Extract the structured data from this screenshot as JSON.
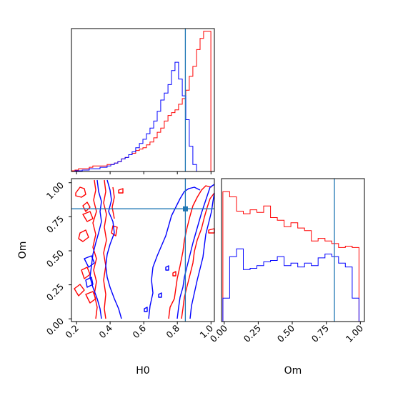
{
  "colors": {
    "series_a": "#ff0000",
    "series_b": "#0000ff",
    "truth": "#1f77b4"
  },
  "chart_data": {
    "type": "corner",
    "parameters": [
      "H0",
      "Om"
    ],
    "truth": {
      "H0": 0.84,
      "Om": 0.81
    },
    "panels": [
      {
        "id": "hist_H0",
        "type": "histogram",
        "x": "H0",
        "xlim": [
          0.17,
          1.02
        ],
        "ylim": [
          0,
          1.02
        ],
        "bins": [
          0.17,
          0.191,
          0.212,
          0.234,
          0.255,
          0.276,
          0.297,
          0.319,
          0.34,
          0.361,
          0.382,
          0.404,
          0.425,
          0.446,
          0.467,
          0.489,
          0.51,
          0.531,
          0.552,
          0.574,
          0.595,
          0.616,
          0.637,
          0.659,
          0.68,
          0.701,
          0.722,
          0.744,
          0.765,
          0.786,
          0.807,
          0.829,
          0.85,
          0.871,
          0.892,
          0.914,
          0.935,
          0.956,
          0.977,
          0.999,
          1.02
        ],
        "series": [
          {
            "color": "red",
            "values": [
              0.005,
              0.01,
              0.02,
              0.02,
              0.02,
              0.03,
              0.04,
              0.04,
              0.04,
              0.04,
              0.05,
              0.05,
              0.06,
              0.07,
              0.09,
              0.1,
              0.12,
              0.13,
              0.15,
              0.16,
              0.17,
              0.19,
              0.21,
              0.24,
              0.28,
              0.31,
              0.36,
              0.4,
              0.42,
              0.44,
              0.48,
              0.52,
              0.58,
              0.68,
              0.75,
              0.87,
              0.95,
              1.0,
              1.0,
              0.0
            ]
          },
          {
            "color": "blue",
            "values": [
              0.0,
              0.005,
              0.005,
              0.01,
              0.01,
              0.02,
              0.02,
              0.02,
              0.03,
              0.03,
              0.04,
              0.05,
              0.06,
              0.07,
              0.09,
              0.1,
              0.12,
              0.14,
              0.17,
              0.2,
              0.23,
              0.27,
              0.31,
              0.36,
              0.43,
              0.51,
              0.56,
              0.62,
              0.72,
              0.78,
              0.66,
              0.54,
              0.37,
              0.18,
              0.05,
              0.0,
              0.0,
              0.0,
              0.0,
              0.0
            ]
          }
        ]
      },
      {
        "id": "contour_H0_Om",
        "type": "contour",
        "x": "H0",
        "y": "Om",
        "xlim": [
          0.17,
          1.02
        ],
        "ylim": [
          -0.02,
          1.03
        ],
        "xticks": [
          "0.2",
          "0.4",
          "0.6",
          "0.8",
          "1.0"
        ],
        "yticks": [
          "0.00",
          "0.25",
          "0.50",
          "0.75",
          "1.00"
        ],
        "xlabel": "H0",
        "ylabel": "Om",
        "series": [
          {
            "color": "red",
            "levels": 2
          },
          {
            "color": "blue",
            "levels": 2
          }
        ]
      },
      {
        "id": "hist_Om",
        "type": "histogram",
        "x": "Om",
        "xlim": [
          -0.02,
          1.03
        ],
        "ylim": [
          0,
          1.1
        ],
        "bins": [
          -0.01,
          0.04,
          0.09,
          0.14,
          0.19,
          0.24,
          0.29,
          0.34,
          0.39,
          0.44,
          0.49,
          0.54,
          0.59,
          0.64,
          0.69,
          0.74,
          0.79,
          0.84,
          0.89,
          0.94,
          0.99
        ],
        "xticks": [
          "0.00",
          "0.25",
          "0.50",
          "0.75",
          "1.00"
        ],
        "xlabel": "Om",
        "series": [
          {
            "color": "red",
            "values": [
              1.0,
              0.96,
              0.85,
              0.83,
              0.86,
              0.84,
              0.89,
              0.8,
              0.78,
              0.73,
              0.76,
              0.72,
              0.7,
              0.62,
              0.64,
              0.62,
              0.6,
              0.57,
              0.58,
              0.57
            ]
          },
          {
            "color": "blue",
            "values": [
              0.18,
              0.5,
              0.56,
              0.4,
              0.41,
              0.43,
              0.46,
              0.47,
              0.5,
              0.43,
              0.45,
              0.42,
              0.45,
              0.43,
              0.49,
              0.52,
              0.5,
              0.45,
              0.42,
              0.18
            ]
          }
        ]
      }
    ]
  }
}
